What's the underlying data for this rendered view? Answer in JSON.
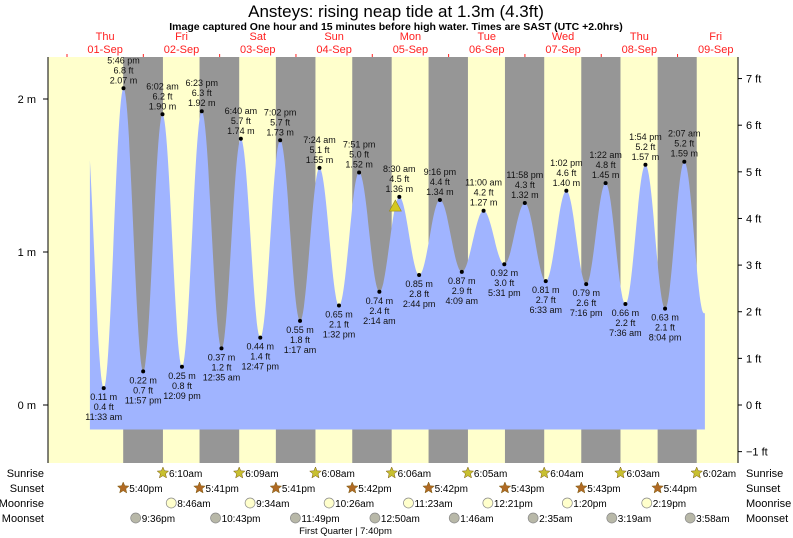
{
  "chart_data": {
    "type": "area",
    "title": "Ansteys: rising  neap tide at 1.3m (4.3ft)",
    "subtitle": "Image captured One hour and 15 minutes before high water. Times are SAST (UTC +2.0hrs)",
    "days": [
      {
        "day": "Thu",
        "date": "01-Sep"
      },
      {
        "day": "Fri",
        "date": "02-Sep"
      },
      {
        "day": "Sat",
        "date": "03-Sep"
      },
      {
        "day": "Sun",
        "date": "04-Sep"
      },
      {
        "day": "Mon",
        "date": "05-Sep"
      },
      {
        "day": "Tue",
        "date": "06-Sep"
      },
      {
        "day": "Wed",
        "date": "07-Sep"
      },
      {
        "day": "Thu",
        "date": "08-Sep"
      },
      {
        "day": "Fri",
        "date": "09-Sep"
      }
    ],
    "y_left_ticks": [
      {
        "v": 0,
        "label": "0 m"
      },
      {
        "v": 1,
        "label": "1 m"
      },
      {
        "v": 2,
        "label": "2 m"
      }
    ],
    "y_right_ticks": [
      {
        "v": -1,
        "label": "−1 ft"
      },
      {
        "v": 0,
        "label": "0 ft"
      },
      {
        "v": 1,
        "label": "1 ft"
      },
      {
        "v": 2,
        "label": "2 ft"
      },
      {
        "v": 3,
        "label": "3 ft"
      },
      {
        "v": 4,
        "label": "4 ft"
      },
      {
        "v": 5,
        "label": "5 ft"
      },
      {
        "v": 6,
        "label": "6 ft"
      },
      {
        "v": 7,
        "label": "7 ft"
      }
    ],
    "ylim_m": [
      -0.38,
      2.27
    ],
    "hours_range": [
      -6,
      211
    ],
    "current": {
      "hour": 103.25,
      "height_m": 1.3
    },
    "extremes": [
      {
        "type": "low",
        "hour": 11.55,
        "time": "11:33 am",
        "m": 0.11,
        "m_label": "0.11 m",
        "ft_label": "0.4 ft"
      },
      {
        "type": "high",
        "hour": 17.77,
        "time": "5:46 pm",
        "m": 2.07,
        "m_label": "2.07 m",
        "ft_label": "6.8 ft"
      },
      {
        "type": "low",
        "hour": 23.95,
        "time": "11:57 pm",
        "m": 0.22,
        "m_label": "0.22 m",
        "ft_label": "0.7 ft"
      },
      {
        "type": "high",
        "hour": 30.03,
        "time": "6:02 am",
        "m": 1.9,
        "m_label": "1.90 m",
        "ft_label": "6.2 ft"
      },
      {
        "type": "low",
        "hour": 36.15,
        "time": "12:09 pm",
        "m": 0.25,
        "m_label": "0.25 m",
        "ft_label": "0.8 ft"
      },
      {
        "type": "high",
        "hour": 42.38,
        "time": "6:23 pm",
        "m": 1.92,
        "m_label": "1.92 m",
        "ft_label": "6.3 ft"
      },
      {
        "type": "low",
        "hour": 48.58,
        "time": "12:35 am",
        "m": 0.37,
        "m_label": "0.37 m",
        "ft_label": "1.2 ft"
      },
      {
        "type": "high",
        "hour": 54.67,
        "time": "6:40 am",
        "m": 1.74,
        "m_label": "1.74 m",
        "ft_label": "5.7 ft"
      },
      {
        "type": "low",
        "hour": 60.78,
        "time": "12:47 pm",
        "m": 0.44,
        "m_label": "0.44 m",
        "ft_label": "1.4 ft"
      },
      {
        "type": "high",
        "hour": 67.03,
        "time": "7:02 pm",
        "m": 1.73,
        "m_label": "1.73 m",
        "ft_label": "5.7 ft"
      },
      {
        "type": "low",
        "hour": 73.28,
        "time": "1:17 am",
        "m": 0.55,
        "m_label": "0.55 m",
        "ft_label": "1.8 ft"
      },
      {
        "type": "high",
        "hour": 79.4,
        "time": "7:24 am",
        "m": 1.55,
        "m_label": "1.55 m",
        "ft_label": "5.1 ft"
      },
      {
        "type": "low",
        "hour": 85.53,
        "time": "1:32 pm",
        "m": 0.65,
        "m_label": "0.65 m",
        "ft_label": "2.1 ft"
      },
      {
        "type": "high",
        "hour": 91.85,
        "time": "7:51 pm",
        "m": 1.52,
        "m_label": "1.52 m",
        "ft_label": "5.0 ft"
      },
      {
        "type": "low",
        "hour": 98.23,
        "time": "2:14 am",
        "m": 0.74,
        "m_label": "0.74 m",
        "ft_label": "2.4 ft"
      },
      {
        "type": "high",
        "hour": 104.5,
        "time": "8:30 am",
        "m": 1.36,
        "m_label": "1.36 m",
        "ft_label": "4.5 ft"
      },
      {
        "type": "low",
        "hour": 110.73,
        "time": "2:44 pm",
        "m": 0.85,
        "m_label": "0.85 m",
        "ft_label": "2.8 ft"
      },
      {
        "type": "high",
        "hour": 117.27,
        "time": "9:16 pm",
        "m": 1.34,
        "m_label": "1.34 m",
        "ft_label": "4.4 ft"
      },
      {
        "type": "low",
        "hour": 124.15,
        "time": "4:09 am",
        "m": 0.87,
        "m_label": "0.87 m",
        "ft_label": "2.9 ft"
      },
      {
        "type": "high",
        "hour": 131.0,
        "time": "11:00 am",
        "m": 1.27,
        "m_label": "1.27 m",
        "ft_label": "4.2 ft"
      },
      {
        "type": "low",
        "hour": 137.52,
        "time": "5:31 pm",
        "m": 0.92,
        "m_label": "0.92 m",
        "ft_label": "3.0 ft"
      },
      {
        "type": "high",
        "hour": 143.97,
        "time": "11:58 pm",
        "m": 1.32,
        "m_label": "1.32 m",
        "ft_label": "4.3 ft"
      },
      {
        "type": "low",
        "hour": 150.55,
        "time": "6:33 am",
        "m": 0.81,
        "m_label": "0.81 m",
        "ft_label": "2.7 ft"
      },
      {
        "type": "high",
        "hour": 157.03,
        "time": "1:02 pm",
        "m": 1.4,
        "m_label": "1.40 m",
        "ft_label": "4.6 ft"
      },
      {
        "type": "low",
        "hour": 163.27,
        "time": "7:16 pm",
        "m": 0.79,
        "m_label": "0.79 m",
        "ft_label": "2.6 ft"
      },
      {
        "type": "high",
        "hour": 169.37,
        "time": "1:22 am",
        "m": 1.45,
        "m_label": "1.45 m",
        "ft_label": "4.8 ft"
      },
      {
        "type": "low",
        "hour": 175.6,
        "time": "7:36 am",
        "m": 0.66,
        "m_label": "0.66 m",
        "ft_label": "2.2 ft"
      },
      {
        "type": "high",
        "hour": 181.9,
        "time": "1:54 pm",
        "m": 1.57,
        "m_label": "1.57 m",
        "ft_label": "5.2 ft"
      },
      {
        "type": "low",
        "hour": 188.07,
        "time": "8:04 pm",
        "m": 0.63,
        "m_label": "0.63 m",
        "ft_label": "2.1 ft"
      },
      {
        "type": "high",
        "hour": 194.12,
        "time": "2:07 am",
        "m": 1.59,
        "m_label": "1.59 m",
        "ft_label": "5.2 ft"
      }
    ],
    "row_labels": {
      "sunrise": "Sunrise",
      "sunset": "Sunset",
      "moonrise": "Moonrise",
      "moonset": "Moonset"
    },
    "sunrise": [
      {
        "hour": 30.17,
        "time": "6:10am"
      },
      {
        "hour": 54.15,
        "time": "6:09am"
      },
      {
        "hour": 78.13,
        "time": "6:08am"
      },
      {
        "hour": 102.1,
        "time": "6:06am"
      },
      {
        "hour": 126.08,
        "time": "6:05am"
      },
      {
        "hour": 150.07,
        "time": "6:04am"
      },
      {
        "hour": 174.05,
        "time": "6:03am"
      },
      {
        "hour": 198.03,
        "time": "6:02am"
      }
    ],
    "sunset": [
      {
        "hour": 17.67,
        "time": "5:40pm"
      },
      {
        "hour": 41.68,
        "time": "5:41pm"
      },
      {
        "hour": 65.68,
        "time": "5:41pm"
      },
      {
        "hour": 89.7,
        "time": "5:42pm"
      },
      {
        "hour": 113.7,
        "time": "5:42pm"
      },
      {
        "hour": 137.72,
        "time": "5:43pm"
      },
      {
        "hour": 161.72,
        "time": "5:43pm"
      },
      {
        "hour": 185.73,
        "time": "5:44pm"
      }
    ],
    "moonrise": [
      {
        "hour": 32.77,
        "time": "8:46am"
      },
      {
        "hour": 57.57,
        "time": "9:34am"
      },
      {
        "hour": 82.43,
        "time": "10:26am"
      },
      {
        "hour": 107.38,
        "time": "11:23am"
      },
      {
        "hour": 132.35,
        "time": "12:21pm"
      },
      {
        "hour": 157.33,
        "time": "1:20pm"
      },
      {
        "hour": 182.32,
        "time": "2:19pm"
      }
    ],
    "moonset": [
      {
        "hour": 21.6,
        "time": "9:36pm"
      },
      {
        "hour": 46.72,
        "time": "10:43pm"
      },
      {
        "hour": 71.82,
        "time": "11:49pm"
      },
      {
        "hour": 96.83,
        "time": "12:50am"
      },
      {
        "hour": 121.77,
        "time": "1:46am"
      },
      {
        "hour": 146.58,
        "time": "2:35am"
      },
      {
        "hour": 171.32,
        "time": "3:19am"
      },
      {
        "hour": 195.97,
        "time": "3:58am"
      }
    ],
    "moon_phase": {
      "hour": 91.67,
      "label": "First Quarter | 7:40pm"
    }
  },
  "colors": {
    "day": "#ffffcc",
    "night": "#969696",
    "water": "#a0b4ff",
    "day_label": "#ff2020",
    "sunrise": "#c8c030",
    "sunset": "#b06a24",
    "moonrise": "#ffffcc",
    "moonset": "#b8b8a8"
  }
}
